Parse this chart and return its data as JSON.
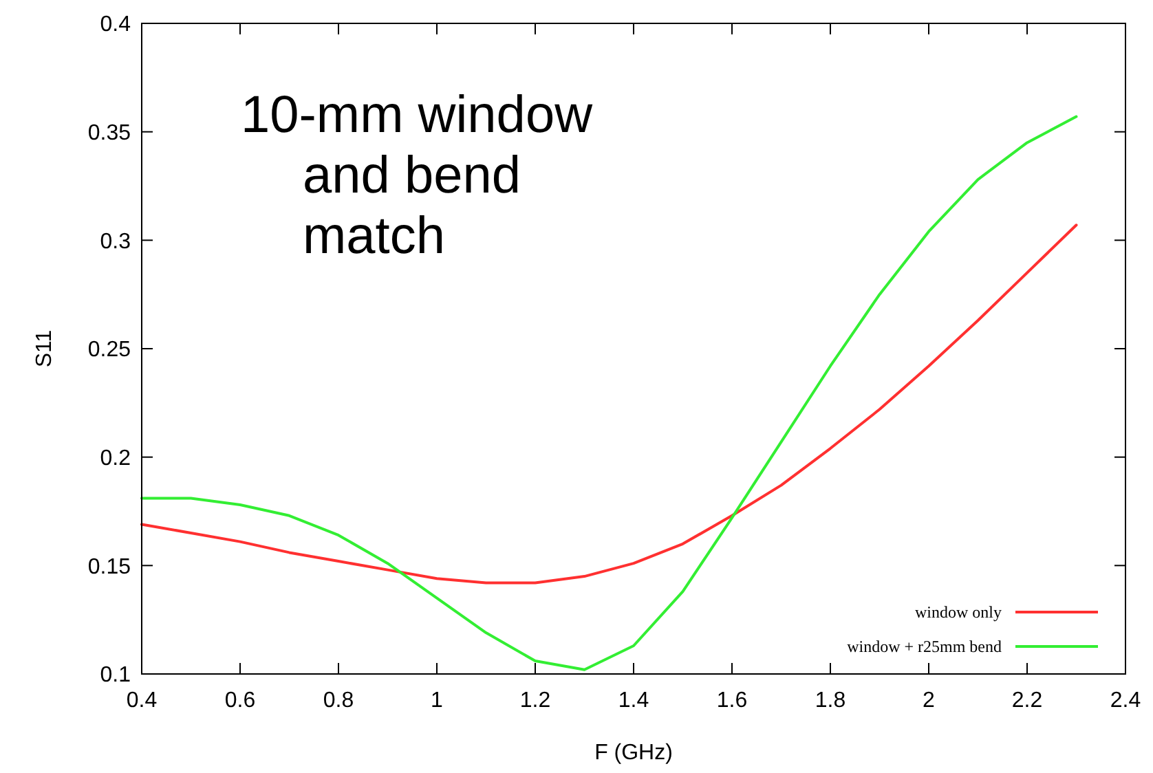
{
  "chart_data": {
    "type": "line",
    "xlabel": "F (GHz)",
    "ylabel": "S11",
    "x": [
      0.4,
      0.5,
      0.6,
      0.7,
      0.8,
      0.9,
      1.0,
      1.1,
      1.2,
      1.3,
      1.4,
      1.5,
      1.6,
      1.7,
      1.8,
      1.9,
      2.0,
      2.1,
      2.2,
      2.3
    ],
    "series": [
      {
        "name": "window only",
        "color": "#ff3030",
        "values": [
          0.169,
          0.165,
          0.161,
          0.156,
          0.152,
          0.148,
          0.144,
          0.142,
          0.142,
          0.145,
          0.151,
          0.16,
          0.173,
          0.187,
          0.204,
          0.222,
          0.242,
          0.263,
          0.285,
          0.307
        ]
      },
      {
        "name": "window + r25mm bend",
        "color": "#33ee33",
        "values": [
          0.181,
          0.181,
          0.178,
          0.173,
          0.164,
          0.151,
          0.135,
          0.119,
          0.106,
          0.102,
          0.113,
          0.138,
          0.172,
          0.207,
          0.242,
          0.275,
          0.304,
          0.328,
          0.345,
          0.357
        ]
      }
    ],
    "xlim": [
      0.4,
      2.4
    ],
    "xticks": [
      0.4,
      0.6,
      0.8,
      1,
      1.2,
      1.4,
      1.6,
      1.8,
      2,
      2.2,
      2.4
    ],
    "ylim": [
      0.1,
      0.4
    ],
    "yticks": [
      0.1,
      0.15,
      0.2,
      0.25,
      0.3,
      0.35,
      0.4
    ],
    "legend": "bottom right",
    "grid": false,
    "annotations": [
      "10-mm window\nand bend\nmatch"
    ]
  }
}
